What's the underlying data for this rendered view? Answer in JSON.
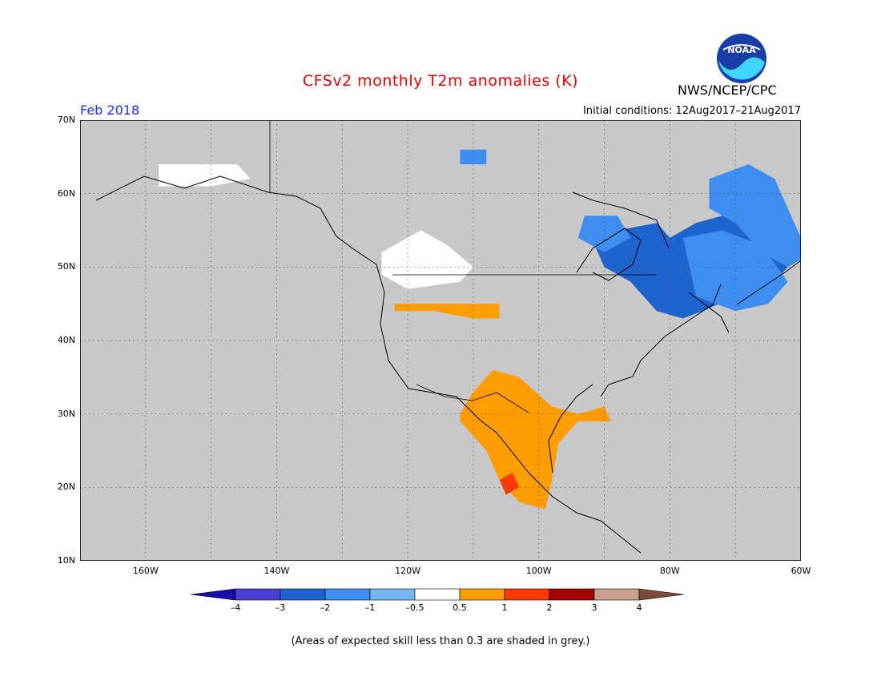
{
  "title": "CFSv2 monthly T2m anomalies (K)",
  "organization": "NWS/NCEP/CPC",
  "logo_text": "NOAA",
  "valid_month": "Feb 2018",
  "initial_conditions": "Initial conditions: 12Aug2017–21Aug2017",
  "footnote": "(Areas of expected skill less than 0.3 are shaded in grey.)",
  "map": {
    "lon_range": [
      -170,
      -60
    ],
    "lat_range": [
      10,
      70
    ],
    "no_skill_color": "#c8c8c8",
    "lat_labels": [
      "70N",
      "60N",
      "50N",
      "40N",
      "30N",
      "20N",
      "10N"
    ],
    "lon_labels": [
      "160W",
      "140W",
      "120W",
      "100W",
      "80W",
      "60W"
    ]
  },
  "colorbar": {
    "labels": [
      "–4",
      "–3",
      "–2",
      "–1",
      "–0.5",
      "0.5",
      "1",
      "2",
      "3",
      "4"
    ],
    "colors": [
      "#1a0aa8",
      "#4b3fd3",
      "#1f63cf",
      "#3d8ef0",
      "#7ab6f5",
      "#ffffff",
      "#ff9c00",
      "#ff3a00",
      "#a40000",
      "#c8a08c",
      "#7a4a3a"
    ]
  },
  "anomaly_regions": [
    {
      "name": "ne-canada-cold",
      "value": -2.0,
      "color": "#1f63cf",
      "points": [
        [
          -88,
          55
        ],
        [
          -82,
          56
        ],
        [
          -80,
          54
        ],
        [
          -76,
          56
        ],
        [
          -72,
          57
        ],
        [
          -65,
          54
        ],
        [
          -62,
          50
        ],
        [
          -65,
          47
        ],
        [
          -70,
          46
        ],
        [
          -75,
          44
        ],
        [
          -78,
          43
        ],
        [
          -82,
          44
        ],
        [
          -86,
          48
        ],
        [
          -90,
          50
        ],
        [
          -92,
          54
        ]
      ]
    },
    {
      "name": "labrador-cool",
      "value": -1.0,
      "color": "#3d8ef0",
      "points": [
        [
          -74,
          62
        ],
        [
          -68,
          64
        ],
        [
          -64,
          62
        ],
        [
          -62,
          58
        ],
        [
          -60,
          54
        ],
        [
          -58,
          52
        ],
        [
          -62,
          50
        ],
        [
          -66,
          52
        ],
        [
          -70,
          56
        ],
        [
          -74,
          58
        ]
      ]
    },
    {
      "name": "quebec-cool",
      "value": -1.0,
      "color": "#3d8ef0",
      "points": [
        [
          -78,
          54
        ],
        [
          -72,
          55
        ],
        [
          -66,
          53
        ],
        [
          -62,
          48
        ],
        [
          -65,
          45
        ],
        [
          -70,
          44
        ],
        [
          -76,
          46
        ]
      ]
    },
    {
      "name": "hudson-cool",
      "value": -1.0,
      "color": "#3d8ef0",
      "points": [
        [
          -93,
          57
        ],
        [
          -88,
          57
        ],
        [
          -86,
          54
        ],
        [
          -90,
          52
        ],
        [
          -94,
          54
        ]
      ]
    },
    {
      "name": "arctic-cool",
      "value": -1.0,
      "color": "#3d8ef0",
      "points": [
        [
          -112,
          66
        ],
        [
          -108,
          66
        ],
        [
          -108,
          64
        ],
        [
          -112,
          64
        ]
      ]
    },
    {
      "name": "alaska-near-normal",
      "value": 0,
      "color": "#ffffff",
      "points": [
        [
          -158,
          64
        ],
        [
          -146,
          64
        ],
        [
          -144,
          62
        ],
        [
          -150,
          61
        ],
        [
          -158,
          61
        ]
      ]
    },
    {
      "name": "bc-near-normal",
      "value": 0,
      "color": "#ffffff",
      "points": [
        [
          -124,
          52
        ],
        [
          -118,
          55
        ],
        [
          -114,
          53
        ],
        [
          -110,
          50
        ],
        [
          -112,
          48
        ],
        [
          -120,
          47
        ],
        [
          -124,
          49
        ]
      ]
    },
    {
      "name": "nw-us-warm",
      "value": 0.7,
      "color": "#ff9c00",
      "points": [
        [
          -122,
          45
        ],
        [
          -116,
          45
        ],
        [
          -110,
          45
        ],
        [
          -106,
          45
        ],
        [
          -106,
          43
        ],
        [
          -110,
          43
        ],
        [
          -116,
          44
        ],
        [
          -122,
          44
        ]
      ]
    },
    {
      "name": "mexico-warm",
      "value": 0.8,
      "color": "#ff9c00",
      "points": [
        [
          -112,
          30
        ],
        [
          -110,
          33
        ],
        [
          -107,
          36
        ],
        [
          -103,
          35
        ],
        [
          -98,
          31
        ],
        [
          -94,
          30
        ],
        [
          -90,
          31
        ],
        [
          -89,
          29
        ],
        [
          -94,
          29
        ],
        [
          -97,
          26
        ],
        [
          -98,
          21
        ],
        [
          -99,
          17
        ],
        [
          -103,
          18
        ],
        [
          -106,
          21
        ],
        [
          -108,
          25
        ],
        [
          -112,
          29
        ]
      ]
    },
    {
      "name": "mexico-hot",
      "value": 1.5,
      "color": "#ff3a00",
      "points": [
        [
          -106,
          21
        ],
        [
          -104,
          22
        ],
        [
          -103,
          20
        ],
        [
          -105,
          19
        ]
      ]
    }
  ]
}
